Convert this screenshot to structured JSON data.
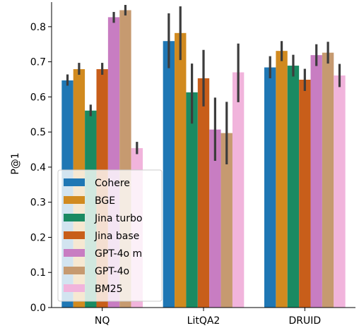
{
  "chart_data": {
    "type": "bar",
    "title": "",
    "xlabel": "",
    "ylabel": "P@1",
    "ylim": [
      0,
      0.87
    ],
    "yticks": [
      0.0,
      0.1,
      0.2,
      0.3,
      0.4,
      0.5,
      0.6,
      0.7,
      0.8
    ],
    "categories": [
      "NQ",
      "LitQA2",
      "DRUID"
    ],
    "legend_position": "lower-left",
    "grid": false,
    "series": [
      {
        "name": "Cohere",
        "color": "#1f77b4",
        "values": [
          0.647,
          0.759,
          0.684
        ],
        "err_low": [
          0.632,
          0.682,
          0.653
        ],
        "err_high": [
          0.664,
          0.838,
          0.716
        ]
      },
      {
        "name": "BGE",
        "color": "#d18a1f",
        "values": [
          0.679,
          0.782,
          0.731
        ],
        "err_low": [
          0.663,
          0.705,
          0.702
        ],
        "err_high": [
          0.697,
          0.858,
          0.759
        ]
      },
      {
        "name": "Jina turbo",
        "color": "#1a8a62",
        "values": [
          0.561,
          0.613,
          0.689
        ],
        "err_low": [
          0.545,
          0.524,
          0.658
        ],
        "err_high": [
          0.578,
          0.695,
          0.72
        ]
      },
      {
        "name": "Jina base",
        "color": "#c85e1a",
        "values": [
          0.679,
          0.653,
          0.649
        ],
        "err_low": [
          0.663,
          0.573,
          0.617
        ],
        "err_high": [
          0.697,
          0.734,
          0.68
        ]
      },
      {
        "name": "GPT-4o m",
        "color": "#c87dc2",
        "values": [
          0.827,
          0.507,
          0.719
        ],
        "err_low": [
          0.811,
          0.418,
          0.688
        ],
        "err_high": [
          0.842,
          0.598,
          0.75
        ]
      },
      {
        "name": "GPT-4o",
        "color": "#c69a70",
        "values": [
          0.847,
          0.497,
          0.726
        ],
        "err_low": [
          0.832,
          0.408,
          0.695
        ],
        "err_high": [
          0.862,
          0.586,
          0.757
        ]
      },
      {
        "name": "BM25",
        "color": "#f1b4dc",
        "values": [
          0.454,
          0.67,
          0.661
        ],
        "err_low": [
          0.437,
          0.585,
          0.628
        ],
        "err_high": [
          0.472,
          0.752,
          0.694
        ]
      }
    ]
  }
}
